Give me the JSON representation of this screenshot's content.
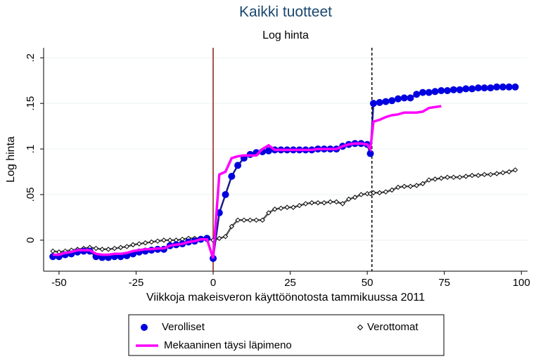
{
  "chart_data": {
    "type": "line",
    "title": "Kaikki tuotteet",
    "subtitle": "Log hinta",
    "x_label": "Viikkoja makeisveron käyttöönotosta tammikuussa 2011",
    "y_label": "Log hinta",
    "x": [
      -52,
      -50,
      -48,
      -46,
      -44,
      -42,
      -40,
      -38,
      -36,
      -34,
      -32,
      -30,
      -28,
      -26,
      -24,
      -22,
      -20,
      -18,
      -16,
      -14,
      -12,
      -10,
      -8,
      -6,
      -4,
      -2,
      0,
      2,
      4,
      6,
      8,
      10,
      12,
      14,
      16,
      18,
      20,
      22,
      24,
      26,
      28,
      30,
      32,
      34,
      36,
      38,
      40,
      42,
      44,
      46,
      48,
      50,
      51,
      52,
      54,
      56,
      58,
      60,
      62,
      64,
      66,
      68,
      70,
      72,
      74,
      76,
      78,
      80,
      82,
      84,
      86,
      88,
      90,
      92,
      94,
      96,
      98
    ],
    "series": [
      {
        "name": "Verottomat",
        "color": "#7a6f6f",
        "marker": "diamond",
        "values": [
          -0.012,
          -0.013,
          -0.012,
          -0.011,
          -0.01,
          -0.009,
          -0.008,
          -0.009,
          -0.01,
          -0.01,
          -0.009,
          -0.008,
          -0.007,
          -0.005,
          -0.004,
          -0.003,
          -0.002,
          -0.001,
          0,
          0,
          0,
          0.001,
          0.002,
          0.002,
          0.002,
          0.002,
          0,
          0.002,
          0.004,
          0.015,
          0.022,
          0.022,
          0.022,
          0.022,
          0.022,
          0.03,
          0.034,
          0.035,
          0.036,
          0.036,
          0.038,
          0.04,
          0.041,
          0.041,
          0.041,
          0.042,
          0.042,
          0.04,
          0.045,
          0.047,
          0.05,
          0.051,
          0.051,
          0.052,
          0.052,
          0.053,
          0.055,
          0.058,
          0.059,
          0.059,
          0.06,
          0.062,
          0.066,
          0.067,
          0.068,
          0.069,
          0.069,
          0.069,
          0.07,
          0.071,
          0.071,
          0.072,
          0.072,
          0.073,
          0.074,
          0.075,
          0.077
        ]
      },
      {
        "name": "Verolliset",
        "color": "#0000e0",
        "marker": "circle",
        "values": [
          -0.018,
          -0.018,
          -0.016,
          -0.015,
          -0.013,
          -0.012,
          -0.012,
          -0.018,
          -0.019,
          -0.019,
          -0.018,
          -0.018,
          -0.017,
          -0.015,
          -0.013,
          -0.012,
          -0.011,
          -0.01,
          -0.01,
          -0.006,
          -0.005,
          -0.004,
          -0.002,
          -0.001,
          0.001,
          0.002,
          -0.02,
          0.03,
          0.05,
          0.07,
          0.082,
          0.09,
          0.094,
          0.096,
          0.097,
          0.098,
          0.099,
          0.099,
          0.099,
          0.099,
          0.099,
          0.099,
          0.099,
          0.1,
          0.1,
          0.1,
          0.1,
          0.103,
          0.105,
          0.106,
          0.106,
          0.105,
          0.095,
          0.15,
          0.151,
          0.152,
          0.153,
          0.155,
          0.156,
          0.156,
          0.16,
          0.162,
          0.162,
          0.163,
          0.164,
          0.164,
          0.165,
          0.165,
          0.166,
          0.166,
          0.167,
          0.167,
          0.167,
          0.168,
          0.168,
          0.168,
          0.168
        ]
      },
      {
        "name": "Mekaaninen täysi läpimeno",
        "color": "#ff00ff",
        "marker": "none",
        "values": [
          -0.016,
          -0.016,
          -0.014,
          -0.013,
          -0.011,
          -0.011,
          -0.011,
          -0.015,
          -0.016,
          -0.016,
          -0.015,
          -0.015,
          -0.014,
          -0.012,
          -0.011,
          -0.01,
          -0.01,
          -0.009,
          -0.009,
          -0.006,
          -0.005,
          -0.004,
          -0.002,
          -0.001,
          0.001,
          0.001,
          -0.02,
          0.072,
          0.075,
          0.09,
          0.092,
          0.093,
          0.093,
          0.093,
          0.1,
          0.104,
          0.099,
          0.099,
          0.099,
          0.099,
          0.099,
          0.099,
          0.099,
          0.1,
          0.1,
          0.1,
          0.1,
          0.103,
          0.105,
          0.106,
          0.106,
          0.105,
          0.1,
          0.13,
          0.132,
          0.135,
          0.137,
          0.138,
          0.14,
          0.14,
          0.14,
          0.141,
          0.145,
          0.146,
          0.147,
          null,
          null,
          null,
          null,
          null,
          null,
          null,
          null,
          null,
          null,
          null,
          null
        ]
      }
    ],
    "vlines": [
      {
        "value": 0,
        "color": "#8b1a1a",
        "dash": false
      },
      {
        "value": 51.5,
        "color": "#000000",
        "dash": true
      }
    ],
    "xlim": [
      -55,
      102
    ],
    "ylim": [
      -0.034,
      0.211
    ],
    "xticks": [
      -50,
      -25,
      0,
      25,
      50,
      75,
      100
    ],
    "yticks": [
      {
        "value": 0,
        "label": "0"
      },
      {
        "value": 0.05,
        "label": ".05"
      },
      {
        "value": 0.1,
        "label": ".1"
      },
      {
        "value": 0.15,
        "label": ".15"
      },
      {
        "value": 0.2,
        "label": ".2"
      }
    ],
    "grid": true
  }
}
